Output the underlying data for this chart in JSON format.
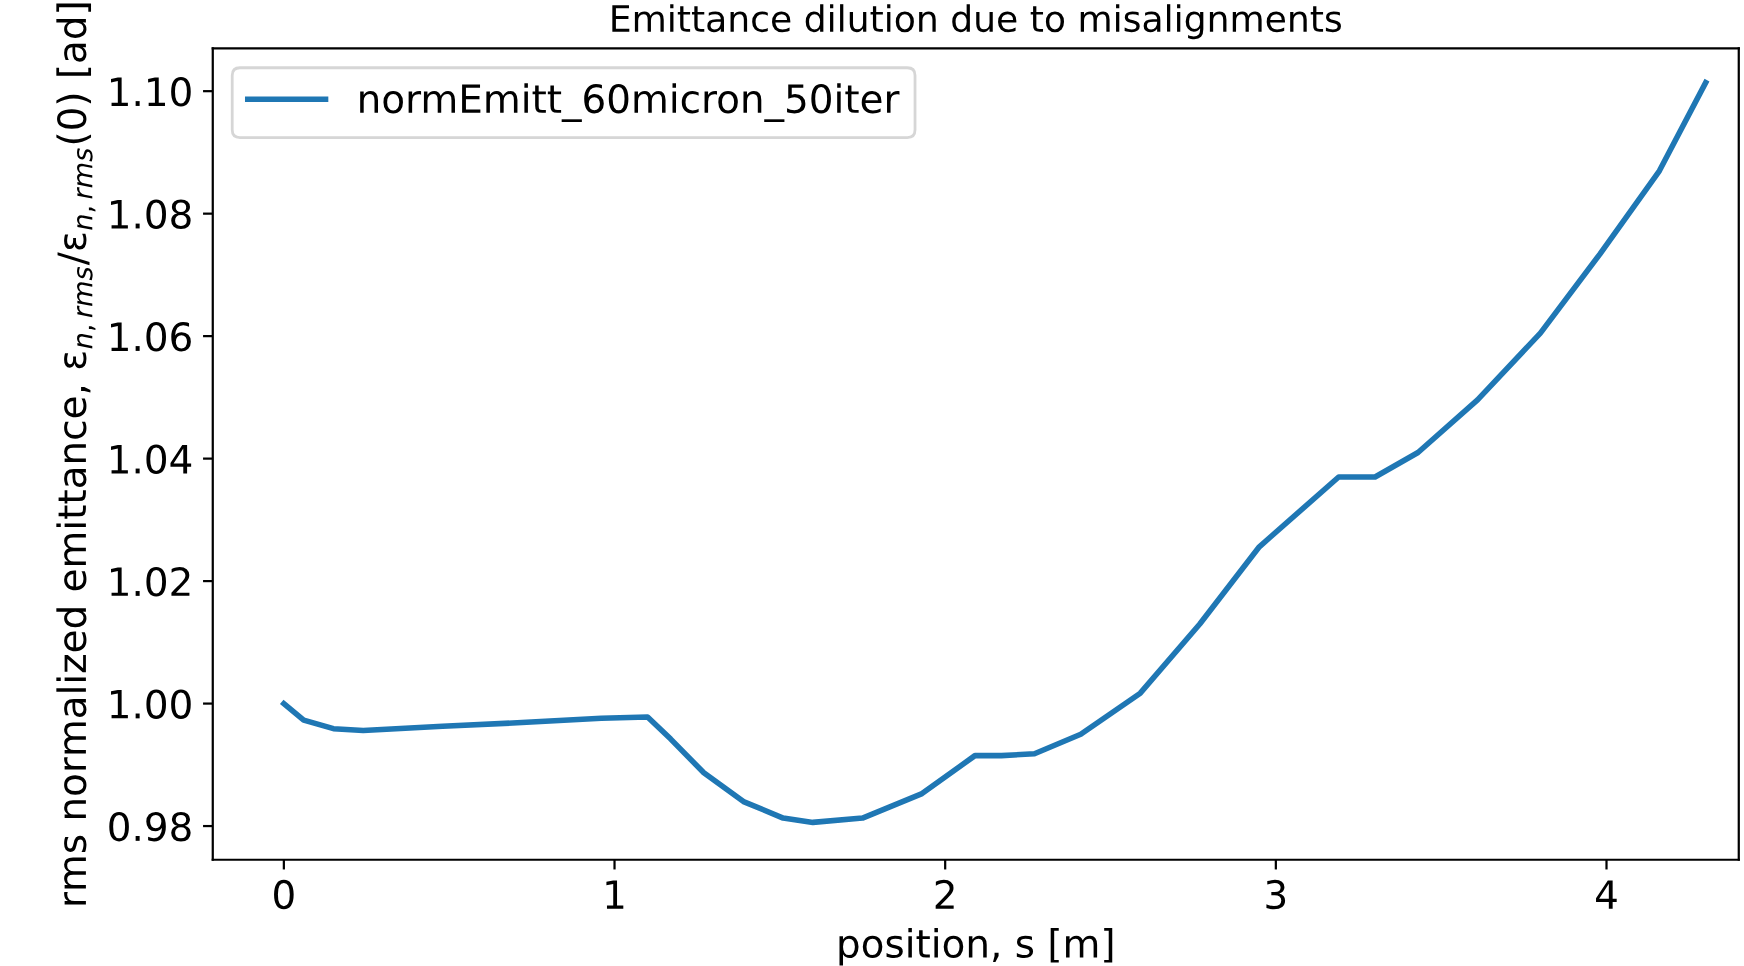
{
  "chart_data": {
    "type": "line",
    "title": "Emittance dilution due to misalignments",
    "xlabel": "position, s [m]",
    "ylabel": "rms normalized emittance, ε$_{n,rms}$/ε$_{n,rms}$(0) [ad]",
    "x": [
      0,
      0.06,
      0.15,
      0.24,
      0.48,
      0.72,
      0.96,
      1.1,
      1.17,
      1.27,
      1.39,
      1.51,
      1.6,
      1.75,
      1.93,
      2.09,
      2.17,
      2.27,
      2.41,
      2.59,
      2.77,
      2.95,
      3.19,
      3.3,
      3.43,
      3.61,
      3.8,
      3.98,
      4.16,
      4.3
    ],
    "series": [
      {
        "name": "normEmitt_60micron_50iter",
        "color": "#1f77b4",
        "values": [
          1.0,
          0.9973,
          0.9959,
          0.9956,
          0.9963,
          0.9969,
          0.9976,
          0.9978,
          0.9942,
          0.9887,
          0.984,
          0.9813,
          0.9806,
          0.9813,
          0.9853,
          0.9915,
          0.9915,
          0.9918,
          0.995,
          1.0017,
          1.013,
          1.0256,
          1.037,
          1.037,
          1.041,
          1.0496,
          1.0605,
          1.0734,
          1.087,
          1.1014
        ]
      }
    ],
    "xlim": [
      -0.215,
      4.4
    ],
    "ylim": [
      0.9745,
      1.107
    ],
    "xticks": [
      0,
      1,
      2,
      3,
      4
    ],
    "yticks": [
      0.98,
      {
        "value": 1,
        "label": "1.00"
      },
      1.02,
      1.04,
      1.06,
      1.08,
      {
        "value": 1.1,
        "label": "1.10"
      }
    ],
    "legend": "top left",
    "grid": false,
    "marker": "none",
    "line_style": "solid"
  }
}
